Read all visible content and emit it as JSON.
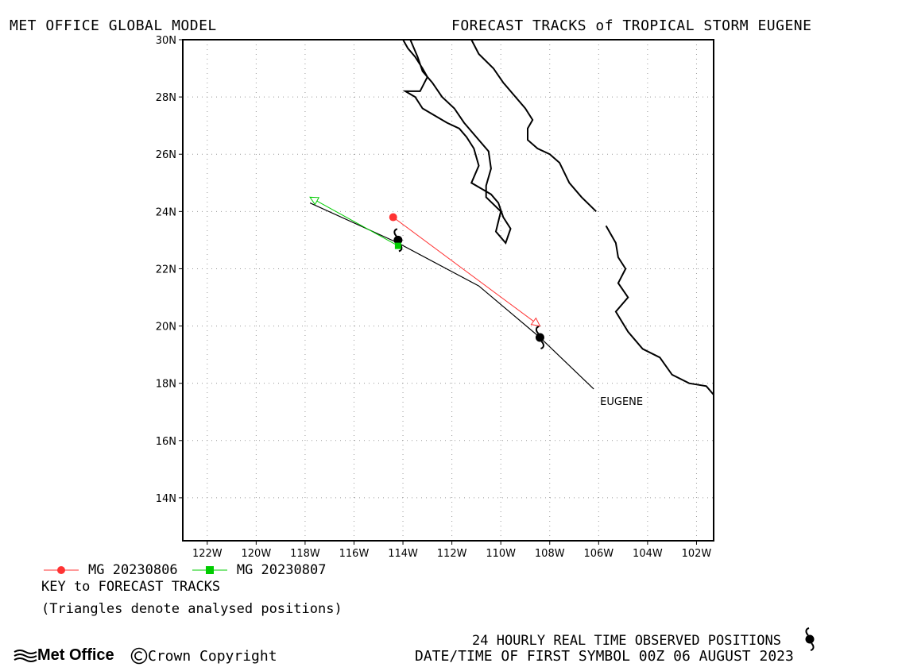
{
  "header": {
    "left_title": "MET OFFICE GLOBAL MODEL",
    "right_title": "FORECAST TRACKS of TROPICAL STORM EUGENE"
  },
  "map": {
    "lon_range": [
      -123,
      -101.3
    ],
    "lat_range": [
      12.5,
      30
    ],
    "lat_labels": [
      "30N",
      "28N",
      "26N",
      "24N",
      "22N",
      "20N",
      "18N",
      "16N",
      "14N"
    ],
    "lat_values": [
      30,
      28,
      26,
      24,
      22,
      20,
      18,
      16,
      14
    ],
    "lon_labels": [
      "122W",
      "120W",
      "118W",
      "116W",
      "114W",
      "112W",
      "110W",
      "108W",
      "106W",
      "104W",
      "102W"
    ],
    "lon_values": [
      -122,
      -120,
      -118,
      -116,
      -114,
      -112,
      -110,
      -108,
      -106,
      -104,
      -102
    ],
    "grid": true,
    "storm_label": "EUGENE",
    "colors": {
      "track_0806": "#ff3333",
      "track_0807": "#00cc00",
      "observed": "#000000",
      "coast": "#000000"
    },
    "tracks": [
      {
        "name": "MG 20230806",
        "color": "#ff3333",
        "marker": "circle",
        "points": [
          [
            -114.4,
            23.8
          ],
          [
            -108.4,
            20.0
          ]
        ]
      },
      {
        "name": "MG 20230807",
        "color": "#00cc00",
        "marker": "square",
        "points": [
          [
            -114.2,
            22.8
          ],
          [
            -117.8,
            24.5
          ]
        ]
      }
    ],
    "observed_track": [
      [
        -117.8,
        24.3
      ],
      [
        -114.2,
        22.9
      ],
      [
        -110.9,
        21.4
      ],
      [
        -108.4,
        19.6
      ],
      [
        -106.2,
        17.8
      ]
    ],
    "observed_symbols": [
      [
        -114.2,
        23.0
      ],
      [
        -108.4,
        19.6
      ]
    ],
    "coastline": [
      [
        [
          -114.0,
          30.0
        ],
        [
          -113.8,
          29.7
        ],
        [
          -113.5,
          29.4
        ],
        [
          -113.2,
          29.0
        ],
        [
          -113.0,
          28.7
        ],
        [
          -113.3,
          28.2
        ],
        [
          -113.9,
          28.2
        ],
        [
          -113.5,
          28.0
        ],
        [
          -113.2,
          27.6
        ],
        [
          -112.8,
          27.4
        ],
        [
          -112.2,
          27.1
        ],
        [
          -111.7,
          26.9
        ],
        [
          -111.4,
          26.6
        ],
        [
          -111.1,
          26.2
        ],
        [
          -110.9,
          25.6
        ],
        [
          -111.2,
          25.0
        ],
        [
          -110.8,
          24.8
        ],
        [
          -110.4,
          24.6
        ],
        [
          -110.1,
          24.3
        ],
        [
          -109.9,
          23.8
        ],
        [
          -109.6,
          23.4
        ],
        [
          -109.8,
          22.9
        ],
        [
          -110.2,
          23.3
        ],
        [
          -110.0,
          24.0
        ],
        [
          -110.6,
          24.5
        ],
        [
          -110.6,
          24.9
        ],
        [
          -110.4,
          25.5
        ],
        [
          -110.5,
          26.1
        ],
        [
          -111.0,
          26.6
        ],
        [
          -111.5,
          27.1
        ],
        [
          -111.9,
          27.6
        ],
        [
          -112.4,
          28.0
        ],
        [
          -112.8,
          28.5
        ],
        [
          -113.2,
          28.9
        ],
        [
          -113.4,
          29.4
        ],
        [
          -113.7,
          30.0
        ]
      ],
      [
        [
          -111.2,
          30.0
        ],
        [
          -110.9,
          29.5
        ],
        [
          -110.3,
          29.0
        ],
        [
          -109.9,
          28.5
        ],
        [
          -109.4,
          28.0
        ],
        [
          -109.0,
          27.6
        ],
        [
          -108.7,
          27.2
        ],
        [
          -108.9,
          26.9
        ],
        [
          -108.9,
          26.5
        ],
        [
          -108.5,
          26.2
        ],
        [
          -108.0,
          26.0
        ],
        [
          -107.6,
          25.7
        ],
        [
          -107.2,
          25.0
        ],
        [
          -106.7,
          24.5
        ],
        [
          -106.1,
          24.0
        ]
      ],
      [
        [
          -105.7,
          23.5
        ],
        [
          -105.3,
          22.9
        ],
        [
          -105.2,
          22.4
        ],
        [
          -104.9,
          22.0
        ],
        [
          -105.2,
          21.5
        ],
        [
          -104.8,
          21.0
        ],
        [
          -105.3,
          20.5
        ],
        [
          -104.8,
          19.8
        ],
        [
          -104.2,
          19.2
        ],
        [
          -103.5,
          18.9
        ],
        [
          -103.0,
          18.3
        ],
        [
          -102.3,
          18.0
        ],
        [
          -101.6,
          17.9
        ],
        [
          -101.3,
          17.6
        ]
      ]
    ]
  },
  "legend": {
    "item1": "MG 20230806",
    "item2": "MG 20230807",
    "key_title": "KEY to FORECAST TRACKS",
    "key_note": "(Triangles denote analysed positions)"
  },
  "footer": {
    "brand": "Met Office",
    "copyright": "Crown Copyright",
    "observed": "24 HOURLY REAL TIME OBSERVED POSITIONS",
    "first_symbol": "DATE/TIME OF FIRST SYMBOL 00Z 06 AUGUST 2023"
  }
}
